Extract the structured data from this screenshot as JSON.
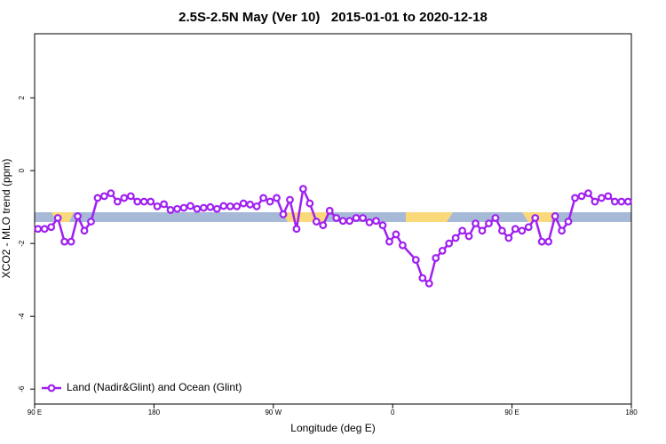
{
  "chart_data": {
    "type": "line",
    "title": "2.5S-2.5N May (Ver 10)   2015-01-01 to 2020-12-18",
    "xlabel": "Longitude (deg E)",
    "ylabel": "XCO2 - MLO trend (ppm)",
    "xlim": [
      90,
      540
    ],
    "xticks": [
      {
        "value": 90,
        "label": "90 E"
      },
      {
        "value": 180,
        "label": "180"
      },
      {
        "value": 270,
        "label": "90 W"
      },
      {
        "value": 360,
        "label": "0"
      },
      {
        "value": 450,
        "label": "90 E"
      },
      {
        "value": 540,
        "label": "180"
      }
    ],
    "ylim": [
      -6.41,
      3.76
    ],
    "yticks": [
      -6,
      -4,
      -2,
      0,
      2
    ],
    "legend": "bottom-left",
    "series": [
      {
        "name": "Land (Nadir&Glint) and Ocean (Glint)",
        "color": "#a020f0",
        "x": [
          92.5,
          97.5,
          102.5,
          107.5,
          112.5,
          117.5,
          122.5,
          127.5,
          132.5,
          137.5,
          142.5,
          147.5,
          152.5,
          157.5,
          162.5,
          167.5,
          172.5,
          177.5,
          182.5,
          187.5,
          192.5,
          197.5,
          202.5,
          207.5,
          212.5,
          217.5,
          222.5,
          227.5,
          232.5,
          237.5,
          242.5,
          247.5,
          252.5,
          257.5,
          262.5,
          267.5,
          272.5,
          277.5,
          282.5,
          287.5,
          292.5,
          297.5,
          302.5,
          307.5,
          312.5,
          317.5,
          322.5,
          327.5,
          332.5,
          337.5,
          342.5,
          347.5,
          352.5,
          357.5,
          362.5,
          367.5,
          377.5,
          382.5,
          387.5,
          392.5,
          397.5,
          402.5,
          407.5,
          412.5,
          417.5,
          422.5,
          427.5,
          432.5,
          437.5,
          442.5,
          447.5,
          452.5,
          457.5,
          462.5,
          467.5,
          472.5,
          477.5,
          482.5,
          487.5,
          492.5,
          497.5,
          502.5,
          507.5,
          512.5,
          517.5,
          522.5,
          527.5,
          532.5,
          537.5
        ],
        "values": [
          -1.6,
          -1.6,
          -1.55,
          -1.3,
          -1.95,
          -1.95,
          -1.25,
          -1.65,
          -1.4,
          -0.75,
          -0.7,
          -0.62,
          -0.85,
          -0.75,
          -0.7,
          -0.85,
          -0.85,
          -0.85,
          -0.98,
          -0.92,
          -1.08,
          -1.05,
          -1.02,
          -0.97,
          -1.05,
          -1.02,
          -1.0,
          -1.05,
          -0.97,
          -0.98,
          -0.98,
          -0.9,
          -0.93,
          -0.98,
          -0.75,
          -0.85,
          -0.75,
          -1.2,
          -0.8,
          -1.6,
          -0.5,
          -0.9,
          -1.4,
          -1.5,
          -1.1,
          -1.3,
          -1.38,
          -1.38,
          -1.3,
          -1.3,
          -1.42,
          -1.38,
          -1.5,
          -1.95,
          -1.75,
          -2.05,
          -2.45,
          -2.95,
          -3.1,
          -2.4,
          -2.2,
          -2.0,
          -1.85,
          -1.65,
          -1.8,
          -1.45,
          -1.65,
          -1.45,
          -1.3,
          -1.65,
          -1.85,
          -1.6,
          -1.65,
          -1.55,
          -1.3,
          -1.95,
          -1.95,
          -1.25,
          -1.65,
          -1.4,
          -0.75,
          -0.7,
          -0.62,
          -0.85,
          -0.75,
          -0.7,
          -0.85,
          -0.85,
          -0.85
        ]
      }
    ]
  }
}
